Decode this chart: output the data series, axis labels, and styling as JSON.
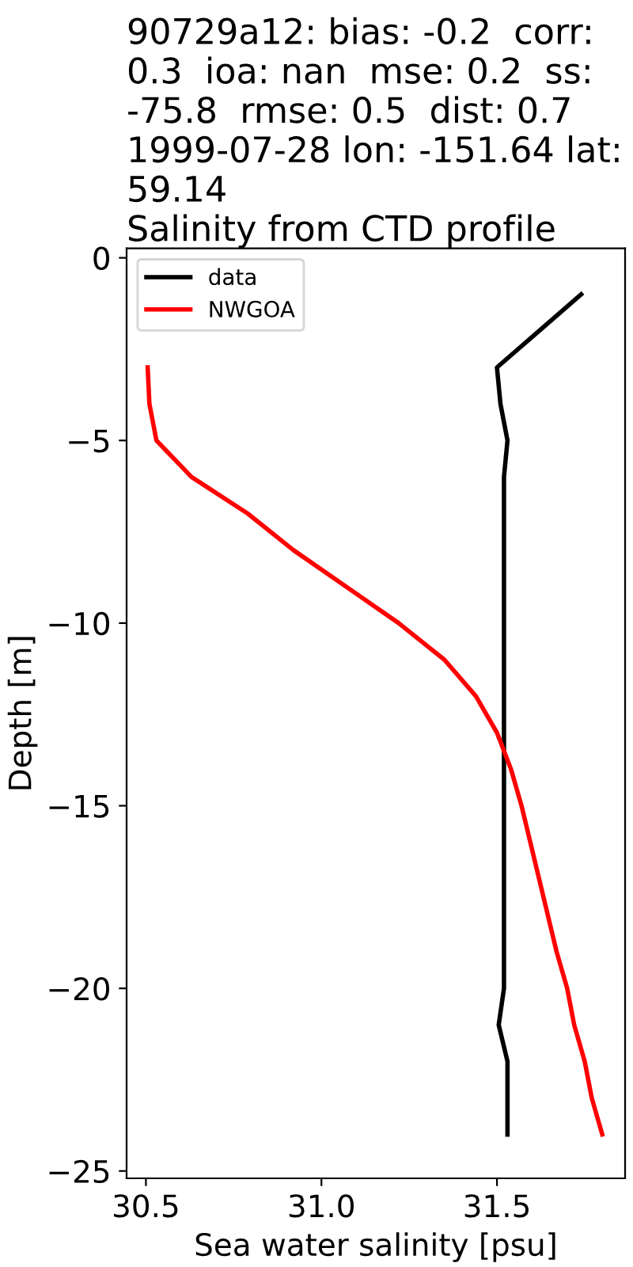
{
  "chart_data": {
    "type": "line",
    "title": "90729a12: bias: -0.2  corr:\n0.3  ioa: nan  mse: 0.2  ss:\n-75.8  rmse: 0.5  dist: 0.7\n1999-07-28 lon: -151.64 lat:\n59.14\nSalinity from CTD profile",
    "xlabel": "Sea water salinity [psu]",
    "ylabel": "Depth [m]",
    "series": [
      {
        "name": "data",
        "color": "#000000",
        "x": [
          31.74,
          31.62,
          31.5,
          31.51,
          31.53,
          31.52,
          31.52,
          31.52,
          31.52,
          31.52,
          31.52,
          31.52,
          31.52,
          31.52,
          31.52,
          31.52,
          31.52,
          31.52,
          31.52,
          31.52,
          31.505,
          31.53,
          31.53,
          31.53
        ],
        "values": [
          -1,
          -2,
          -3,
          -4,
          -5,
          -6,
          -7,
          -8,
          -9,
          -10,
          -11,
          -12,
          -13,
          -14,
          -15,
          -16,
          -17,
          -18,
          -19,
          -20,
          -21,
          -22,
          -23,
          -24
        ]
      },
      {
        "name": "NWGOA",
        "color": "#ff0000",
        "x": [
          30.505,
          30.51,
          30.53,
          30.63,
          30.79,
          30.92,
          31.07,
          31.22,
          31.35,
          31.44,
          31.5,
          31.54,
          31.57,
          31.595,
          31.62,
          31.645,
          31.67,
          31.7,
          31.72,
          31.75,
          31.77,
          31.8
        ],
        "values": [
          -3,
          -4,
          -5,
          -6,
          -7,
          -8,
          -9,
          -10,
          -11,
          -12,
          -13,
          -14,
          -15,
          -16,
          -17,
          -18,
          -19,
          -20,
          -21,
          -22,
          -23,
          -24
        ]
      }
    ],
    "xlim": [
      30.445,
      31.865
    ],
    "xticks": [
      {
        "value": 30.5,
        "label": "30.5"
      },
      {
        "value": 31.0,
        "label": "31.0"
      },
      {
        "value": 31.5,
        "label": "31.5"
      }
    ],
    "ylim": [
      -25.2,
      0.26
    ],
    "yticks": [
      {
        "value": -25,
        "label": "−25"
      },
      {
        "value": -20,
        "label": "−20"
      },
      {
        "value": -15,
        "label": "−15"
      },
      {
        "value": -10,
        "label": "−10"
      },
      {
        "value": -5,
        "label": "−5"
      },
      0
    ],
    "legend": "top left",
    "grid": false,
    "marker": "none",
    "line_style": "solid"
  }
}
